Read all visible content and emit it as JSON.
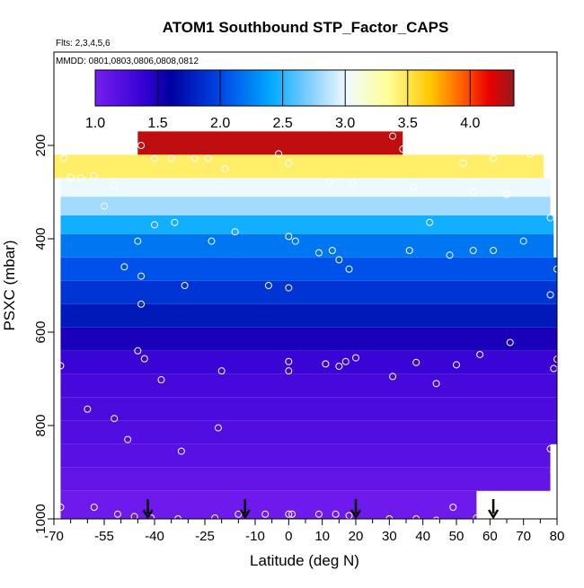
{
  "chart_data": {
    "type": "heatmap",
    "title": "ATOM1 Southbound STP_Factor_CAPS",
    "notes": {
      "flights": "Flts: 2,3,4,5,6",
      "dates": "MMDD: 0801,0803,0806,0808,0812"
    },
    "xlabel": "Latitude (deg N)",
    "ylabel": "PSXC (mbar)",
    "xlim": [
      -70,
      80
    ],
    "ylim": [
      1000,
      0
    ],
    "x_ticks_labeled": [
      "-70",
      "-55",
      "-40",
      "-25",
      "-10",
      "0",
      "10",
      "20",
      "30",
      "40",
      "50",
      "60",
      "70",
      "80"
    ],
    "x_tick_values": [
      -70,
      -55,
      -40,
      -25,
      -10,
      0,
      10,
      20,
      30,
      40,
      50,
      60,
      70,
      80
    ],
    "x_minor_ticks": [
      -65,
      -60,
      -50,
      -45,
      -35,
      -30,
      -20,
      -15,
      -5,
      5,
      15,
      25,
      35,
      45,
      55,
      65,
      75
    ],
    "y_ticks_labeled": [
      "200",
      "400",
      "600",
      "800",
      "1000"
    ],
    "y_tick_values": [
      200,
      400,
      600,
      800,
      1000
    ],
    "colorbar": {
      "range": [
        1.0,
        4.35
      ],
      "ticks": [
        "1.0",
        "1.5",
        "2.0",
        "2.5",
        "3.0",
        "3.5",
        "4.0"
      ],
      "tick_values": [
        1.0,
        1.5,
        2.0,
        2.5,
        3.0,
        3.5,
        4.0
      ]
    },
    "bands": [
      {
        "p_top": 170,
        "p_bot": 220,
        "x0": -45,
        "x1": 34,
        "value": 4.25
      },
      {
        "p_top": 220,
        "p_bot": 270,
        "x0": -70,
        "x1": 76,
        "value": 3.45
      },
      {
        "p_top": 270,
        "p_bot": 310,
        "x0": -68,
        "x1": 78,
        "value": 3.0
      },
      {
        "p_top": 310,
        "p_bot": 350,
        "x0": -68,
        "x1": 78,
        "value": 2.8
      },
      {
        "p_top": 350,
        "p_bot": 390,
        "x0": -68,
        "x1": 79,
        "value": 2.45
      },
      {
        "p_top": 390,
        "p_bot": 440,
        "x0": -68,
        "x1": 79,
        "value": 2.2
      },
      {
        "p_top": 440,
        "p_bot": 490,
        "x0": -68,
        "x1": 80,
        "value": 2.05
      },
      {
        "p_top": 490,
        "p_bot": 540,
        "x0": -68,
        "x1": 80,
        "value": 1.9
      },
      {
        "p_top": 540,
        "p_bot": 590,
        "x0": -68,
        "x1": 80,
        "value": 1.75
      },
      {
        "p_top": 590,
        "p_bot": 640,
        "x0": -68,
        "x1": 80,
        "value": 1.5
      },
      {
        "p_top": 640,
        "p_bot": 690,
        "x0": -68,
        "x1": 80,
        "value": 1.35
      },
      {
        "p_top": 690,
        "p_bot": 740,
        "x0": -68,
        "x1": 80,
        "value": 1.28
      },
      {
        "p_top": 740,
        "p_bot": 790,
        "x0": -68,
        "x1": 80,
        "value": 1.25
      },
      {
        "p_top": 790,
        "p_bot": 840,
        "x0": -68,
        "x1": 80,
        "value": 1.22
      },
      {
        "p_top": 840,
        "p_bot": 890,
        "x0": -68,
        "x1": 78,
        "value": 1.18
      },
      {
        "p_top": 890,
        "p_bot": 940,
        "x0": -68,
        "x1": 78,
        "value": 1.12
      },
      {
        "p_top": 940,
        "p_bot": 1000,
        "x0": -68,
        "x1": 56,
        "value": 1.05
      }
    ],
    "obs_points": [
      [
        -44,
        200
      ],
      [
        -67,
        228
      ],
      [
        -40,
        228
      ],
      [
        -35,
        228
      ],
      [
        -28,
        228
      ],
      [
        -24,
        228
      ],
      [
        -19,
        250
      ],
      [
        -3,
        218
      ],
      [
        0,
        238
      ],
      [
        34,
        208
      ],
      [
        31,
        180
      ],
      [
        61,
        228
      ],
      [
        72,
        218
      ],
      [
        52,
        238
      ],
      [
        -65,
        268
      ],
      [
        -62,
        270
      ],
      [
        -52,
        285
      ],
      [
        -58,
        265
      ],
      [
        12,
        278
      ],
      [
        19,
        280
      ],
      [
        37,
        290
      ],
      [
        65,
        305
      ],
      [
        55,
        300
      ],
      [
        -55,
        330
      ],
      [
        -40,
        370
      ],
      [
        -34,
        365
      ],
      [
        -16,
        385
      ],
      [
        -23,
        405
      ],
      [
        0,
        395
      ],
      [
        2,
        405
      ],
      [
        9,
        430
      ],
      [
        13,
        425
      ],
      [
        15,
        445
      ],
      [
        18,
        465
      ],
      [
        36,
        425
      ],
      [
        42,
        365
      ],
      [
        48,
        435
      ],
      [
        55,
        425
      ],
      [
        61,
        425
      ],
      [
        70,
        405
      ],
      [
        78,
        355
      ],
      [
        -45,
        405
      ],
      [
        -49,
        460
      ],
      [
        -44,
        480
      ],
      [
        -31,
        500
      ],
      [
        -6,
        500
      ],
      [
        0,
        505
      ],
      [
        80,
        465
      ],
      [
        78,
        520
      ],
      [
        -44,
        540
      ],
      [
        -45,
        640
      ],
      [
        -43,
        657
      ],
      [
        -38,
        702
      ],
      [
        -20,
        683
      ],
      [
        0,
        663
      ],
      [
        0,
        683
      ],
      [
        11,
        668
      ],
      [
        15,
        673
      ],
      [
        17,
        663
      ],
      [
        20,
        655
      ],
      [
        31,
        695
      ],
      [
        38,
        665
      ],
      [
        44,
        710
      ],
      [
        50,
        670
      ],
      [
        57,
        648
      ],
      [
        66,
        622
      ],
      [
        80,
        658
      ],
      [
        79,
        678
      ],
      [
        -68,
        672
      ],
      [
        -60,
        765
      ],
      [
        -52,
        785
      ],
      [
        -48,
        830
      ],
      [
        -32,
        855
      ],
      [
        -21,
        805
      ],
      [
        78,
        850
      ],
      [
        79,
        900
      ],
      [
        -68,
        975
      ],
      [
        -58,
        975
      ],
      [
        -51,
        990
      ],
      [
        -46,
        995
      ],
      [
        -41,
        998
      ],
      [
        -33,
        1000
      ],
      [
        -22,
        998
      ],
      [
        -15,
        990
      ],
      [
        -7,
        990
      ],
      [
        0,
        990
      ],
      [
        1,
        990
      ],
      [
        9,
        990
      ],
      [
        14,
        990
      ],
      [
        18,
        993
      ],
      [
        30,
        1000
      ],
      [
        38,
        1000
      ],
      [
        44,
        1003
      ],
      [
        49,
        975
      ],
      [
        56,
        998
      ],
      [
        62,
        1000
      ]
    ],
    "arrows_lat": [
      -42,
      -13,
      20,
      61
    ]
  }
}
